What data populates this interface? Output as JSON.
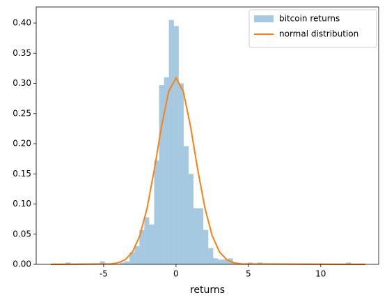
{
  "chart_data": {
    "type": "histogram",
    "xlabel": "returns",
    "bins": [
      -8.65,
      -8.31,
      -7.97,
      -7.63,
      -7.29,
      -6.95,
      -6.61,
      -6.27,
      -5.93,
      -5.59,
      -5.25,
      -4.91,
      -4.57,
      -4.23,
      -3.89,
      -3.55,
      -3.21,
      -2.87,
      -2.53,
      -2.19,
      -1.85,
      -1.51,
      -1.17,
      -0.83,
      -0.49,
      -0.15,
      0.19,
      0.53,
      0.87,
      1.21,
      1.55,
      1.89,
      2.23,
      2.57,
      2.91,
      3.25,
      3.59,
      3.93,
      4.27,
      4.61,
      4.95,
      5.29,
      5.63,
      5.97,
      6.31,
      6.65,
      6.99,
      7.33,
      7.67,
      8.01,
      8.35,
      8.69,
      9.03,
      9.37,
      9.71,
      10.05,
      10.39,
      10.73,
      11.07,
      11.41,
      11.75,
      12.09,
      12.43,
      12.77,
      13.11
    ],
    "series": [
      {
        "name": "bitcoin returns",
        "type": "histogram",
        "color": "#1f77b4",
        "alpha": 0.4,
        "values": [
          0,
          0,
          0,
          0.003,
          0,
          0,
          0,
          0,
          0,
          0,
          0.005,
          0,
          0,
          0,
          0.003,
          0.005,
          0.02,
          0.03,
          0.057,
          0.078,
          0.066,
          0.172,
          0.297,
          0.31,
          0.405,
          0.395,
          0.3,
          0.196,
          0.15,
          0.093,
          0.093,
          0.057,
          0.027,
          0.01,
          0.008,
          0.008,
          0.01,
          0.003,
          0,
          0,
          0.003,
          0,
          0.003,
          0,
          0,
          0,
          0,
          0,
          0,
          0,
          0,
          0,
          0,
          0,
          0,
          0,
          0,
          0,
          0,
          0,
          0.003,
          0,
          0,
          0
        ]
      },
      {
        "name": "normal distribution",
        "type": "line",
        "color": "#ff7f0e",
        "x": [
          -8.65,
          -4.5,
          -4,
          -3.5,
          -3,
          -2.5,
          -2,
          -1.5,
          -1,
          -0.5,
          0,
          0.5,
          1,
          1.5,
          2,
          2.5,
          3,
          3.5,
          4,
          4.5,
          13.09
        ],
        "values": [
          0,
          0.0007,
          0.0025,
          0.0078,
          0.0208,
          0.0474,
          0.093,
          0.157,
          0.229,
          0.287,
          0.309,
          0.287,
          0.229,
          0.157,
          0.093,
          0.0474,
          0.0208,
          0.0078,
          0.0025,
          0.0007,
          0
        ]
      }
    ],
    "xlim": [
      -9.66,
      14.0
    ],
    "ylim": [
      0,
      0.4266
    ],
    "xticks": [
      -5,
      0,
      5,
      10
    ],
    "yticks": [
      {
        "value": 0,
        "label": "0.00"
      },
      {
        "value": 0.05,
        "label": "0.05"
      },
      {
        "value": 0.1,
        "label": "0.10"
      },
      {
        "value": 0.15,
        "label": "0.15"
      },
      {
        "value": 0.2,
        "label": "0.20"
      },
      {
        "value": 0.25,
        "label": "0.25"
      },
      {
        "value": 0.3,
        "label": "0.30"
      },
      {
        "value": 0.35,
        "label": "0.35"
      },
      {
        "value": 0.4,
        "label": "0.40"
      }
    ],
    "legend": "upper right"
  }
}
